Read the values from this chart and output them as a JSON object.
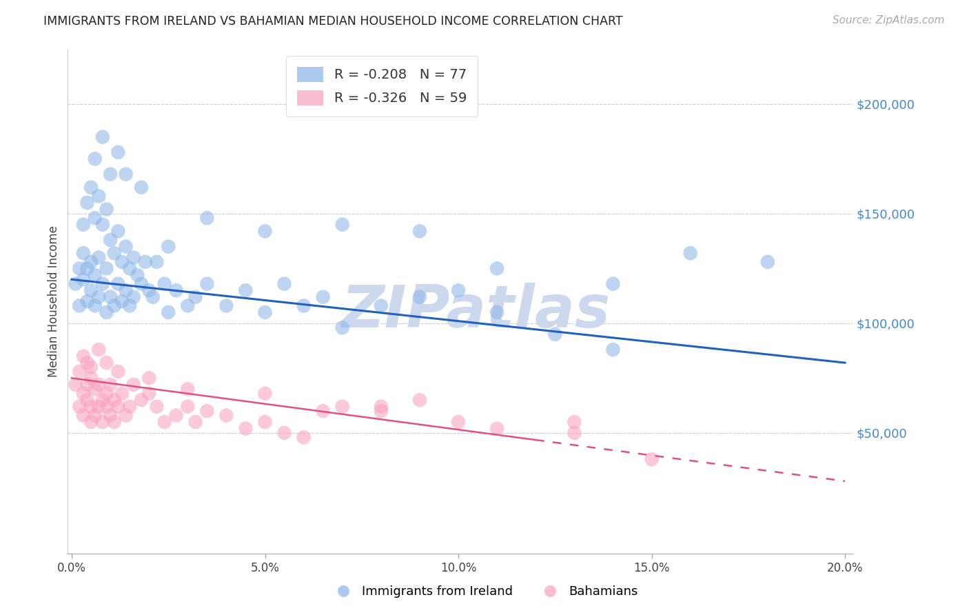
{
  "title": "IMMIGRANTS FROM IRELAND VS BAHAMIAN MEDIAN HOUSEHOLD INCOME CORRELATION CHART",
  "source": "Source: ZipAtlas.com",
  "ylabel": "Median Household Income",
  "xlabel_ticks": [
    "0.0%",
    "5.0%",
    "10.0%",
    "15.0%",
    "20.0%"
  ],
  "xlabel_vals": [
    0.0,
    0.05,
    0.1,
    0.15,
    0.2
  ],
  "ytick_labels": [
    "$50,000",
    "$100,000",
    "$150,000",
    "$200,000"
  ],
  "ytick_vals": [
    50000,
    100000,
    150000,
    200000
  ],
  "ylim": [
    -5000,
    225000
  ],
  "xlim": [
    -0.001,
    0.202
  ],
  "blue_label": "Immigrants from Ireland",
  "pink_label": "Bahamians",
  "blue_R": "R = -0.208",
  "blue_N": "N = 77",
  "pink_R": "R = -0.326",
  "pink_N": "N = 59",
  "blue_scatter_color": "#8ab4e8",
  "blue_line_color": "#2060c0",
  "pink_scatter_color": "#f8a0bc",
  "pink_line_color": "#e05080",
  "watermark": "ZIPatlas",
  "watermark_color": "#ccd8ee",
  "blue_scatter_x": [
    0.001,
    0.002,
    0.002,
    0.003,
    0.003,
    0.003,
    0.004,
    0.004,
    0.004,
    0.005,
    0.005,
    0.005,
    0.006,
    0.006,
    0.006,
    0.007,
    0.007,
    0.007,
    0.008,
    0.008,
    0.009,
    0.009,
    0.009,
    0.01,
    0.01,
    0.011,
    0.011,
    0.012,
    0.012,
    0.013,
    0.013,
    0.014,
    0.014,
    0.015,
    0.015,
    0.016,
    0.016,
    0.017,
    0.018,
    0.019,
    0.02,
    0.021,
    0.022,
    0.024,
    0.025,
    0.027,
    0.03,
    0.032,
    0.035,
    0.04,
    0.045,
    0.05,
    0.055,
    0.06,
    0.065,
    0.07,
    0.08,
    0.09,
    0.1,
    0.11,
    0.125,
    0.14,
    0.006,
    0.008,
    0.01,
    0.012,
    0.014,
    0.018,
    0.025,
    0.035,
    0.05,
    0.07,
    0.09,
    0.11,
    0.14,
    0.16,
    0.18
  ],
  "blue_scatter_y": [
    118000,
    108000,
    125000,
    120000,
    132000,
    145000,
    110000,
    125000,
    155000,
    115000,
    128000,
    162000,
    108000,
    122000,
    148000,
    112000,
    130000,
    158000,
    118000,
    145000,
    105000,
    125000,
    152000,
    112000,
    138000,
    108000,
    132000,
    118000,
    142000,
    110000,
    128000,
    115000,
    135000,
    108000,
    125000,
    112000,
    130000,
    122000,
    118000,
    128000,
    115000,
    112000,
    128000,
    118000,
    105000,
    115000,
    108000,
    112000,
    118000,
    108000,
    115000,
    105000,
    118000,
    108000,
    112000,
    98000,
    108000,
    112000,
    115000,
    105000,
    95000,
    88000,
    175000,
    185000,
    168000,
    178000,
    168000,
    162000,
    135000,
    148000,
    142000,
    145000,
    142000,
    125000,
    118000,
    132000,
    128000
  ],
  "pink_scatter_x": [
    0.001,
    0.002,
    0.002,
    0.003,
    0.003,
    0.004,
    0.004,
    0.004,
    0.005,
    0.005,
    0.005,
    0.006,
    0.006,
    0.007,
    0.007,
    0.008,
    0.008,
    0.009,
    0.009,
    0.01,
    0.01,
    0.011,
    0.011,
    0.012,
    0.013,
    0.014,
    0.015,
    0.016,
    0.018,
    0.02,
    0.022,
    0.024,
    0.027,
    0.03,
    0.032,
    0.035,
    0.04,
    0.045,
    0.05,
    0.055,
    0.06,
    0.065,
    0.07,
    0.08,
    0.09,
    0.1,
    0.11,
    0.13,
    0.15,
    0.003,
    0.005,
    0.007,
    0.009,
    0.012,
    0.02,
    0.03,
    0.05,
    0.08,
    0.13
  ],
  "pink_scatter_y": [
    72000,
    62000,
    78000,
    68000,
    58000,
    72000,
    65000,
    82000,
    62000,
    75000,
    55000,
    70000,
    58000,
    72000,
    62000,
    65000,
    55000,
    68000,
    62000,
    72000,
    58000,
    65000,
    55000,
    62000,
    68000,
    58000,
    62000,
    72000,
    65000,
    68000,
    62000,
    55000,
    58000,
    62000,
    55000,
    60000,
    58000,
    52000,
    55000,
    50000,
    48000,
    60000,
    62000,
    60000,
    65000,
    55000,
    52000,
    50000,
    38000,
    85000,
    80000,
    88000,
    82000,
    78000,
    75000,
    70000,
    68000,
    62000,
    55000
  ]
}
